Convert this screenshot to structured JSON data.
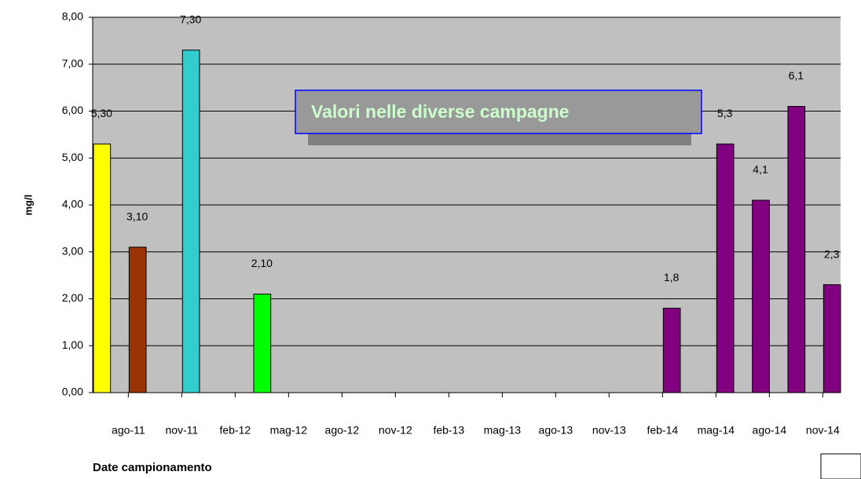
{
  "chart_data": {
    "type": "bar",
    "y_label": "mg/l",
    "x_label": "Date campionamento",
    "annotation": "Valori nelle diverse campagne",
    "x": [
      "2011-06",
      "2011-08",
      "2011-11",
      "2012-03",
      "2014-02",
      "2014-05",
      "2014-07",
      "2014-09",
      "2014-11"
    ],
    "values": [
      5.3,
      3.1,
      7.3,
      2.1,
      1.8,
      5.3,
      4.1,
      6.1,
      2.3
    ],
    "value_labels": [
      "5,30",
      "3,10",
      "7,30",
      "2,10",
      "1,8",
      "5,3",
      "4,1",
      "6,1",
      "2,3"
    ],
    "colors": [
      "#ffff00",
      "#993300",
      "#33cccc",
      "#00ff00",
      "#800080",
      "#800080",
      "#800080",
      "#800080",
      "#800080"
    ],
    "xlim": [
      "2011-06",
      "2014-12"
    ],
    "xticks": [
      {
        "value": "2011-08",
        "label": "ago-11"
      },
      {
        "value": "2011-11",
        "label": "nov-11"
      },
      {
        "value": "2012-02",
        "label": "feb-12"
      },
      {
        "value": "2012-05",
        "label": "mag-12"
      },
      {
        "value": "2012-08",
        "label": "ago-12"
      },
      {
        "value": "2012-11",
        "label": "nov-12"
      },
      {
        "value": "2013-02",
        "label": "feb-13"
      },
      {
        "value": "2013-05",
        "label": "mag-13"
      },
      {
        "value": "2013-08",
        "label": "ago-13"
      },
      {
        "value": "2013-11",
        "label": "nov-13"
      },
      {
        "value": "2014-02",
        "label": "feb-14"
      },
      {
        "value": "2014-05",
        "label": "mag-14"
      },
      {
        "value": "2014-08",
        "label": "ago-14"
      },
      {
        "value": "2014-11",
        "label": "nov-14"
      }
    ],
    "ylim": [
      0,
      8
    ],
    "yticks": [
      {
        "value": 0,
        "label": "0,00"
      },
      {
        "value": 1,
        "label": "1,00"
      },
      {
        "value": 2,
        "label": "2,00"
      },
      {
        "value": 3,
        "label": "3,00"
      },
      {
        "value": 4,
        "label": "4,00"
      },
      {
        "value": 5,
        "label": "5,00"
      },
      {
        "value": 6,
        "label": "6,00"
      },
      {
        "value": 7,
        "label": "7,00"
      },
      {
        "value": 8,
        "label": "8,00"
      }
    ],
    "grid": true,
    "plot_background": "#c0c0c0"
  }
}
